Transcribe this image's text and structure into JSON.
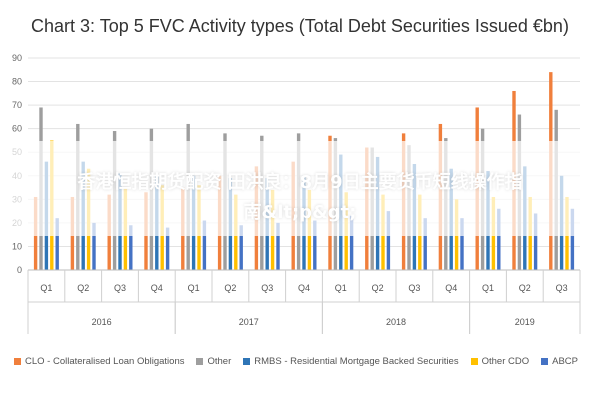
{
  "chart_data": {
    "type": "bar",
    "title": "Chart 3: Top 5 FVC Activity types (Total Debt Securities Issued €bn)",
    "xlabel": "",
    "ylabel": "",
    "ylim": [
      0,
      90
    ],
    "y_ticks": [
      "0",
      "10",
      "20",
      "30",
      "40",
      "50",
      "60",
      "70",
      "80",
      "90"
    ],
    "categories": [
      "Q1",
      "Q2",
      "Q3",
      "Q4",
      "Q1",
      "Q2",
      "Q3",
      "Q4",
      "Q1",
      "Q2",
      "Q3",
      "Q4",
      "Q1",
      "Q2",
      "Q3"
    ],
    "years": [
      {
        "label": "2016",
        "start": 0,
        "count": 4
      },
      {
        "label": "2017",
        "start": 4,
        "count": 4
      },
      {
        "label": "2018",
        "start": 8,
        "count": 4
      },
      {
        "label": "2019",
        "start": 12,
        "count": 3
      }
    ],
    "series": [
      {
        "name": "CLO - Collateralised Loan Obligations",
        "color": "#F07F3C",
        "values": [
          31,
          31,
          32,
          33,
          35,
          40,
          44,
          46,
          57,
          52,
          58,
          62,
          69,
          76,
          84
        ]
      },
      {
        "name": "Other",
        "color": "#9E9E9E",
        "values": [
          69,
          62,
          59,
          60,
          62,
          58,
          57,
          58,
          56,
          52,
          53,
          56,
          60,
          66,
          68
        ]
      },
      {
        "name": "RMBS - Residential Mortgage Backed Securities",
        "color": "#2E75B6",
        "values": [
          46,
          46,
          41,
          40,
          40,
          39,
          39,
          40,
          49,
          48,
          45,
          43,
          42,
          44,
          40
        ]
      },
      {
        "name": "Other CDO",
        "color": "#FFC000",
        "values": [
          55,
          43,
          35,
          36,
          36,
          32,
          34,
          34,
          33,
          32,
          32,
          30,
          31,
          31,
          31
        ]
      },
      {
        "name": "ABCP",
        "color": "#4472C4",
        "values": [
          22,
          20,
          19,
          18,
          21,
          19,
          20,
          21,
          23,
          25,
          22,
          22,
          26,
          24,
          26
        ]
      }
    ],
    "grid": true,
    "legend_position": "bottom"
  },
  "overlay": {
    "line1": "香港恒指期货配资 田洪良：8月9日主要货币短线操作指",
    "line2": "南&lt;p&gt;"
  }
}
